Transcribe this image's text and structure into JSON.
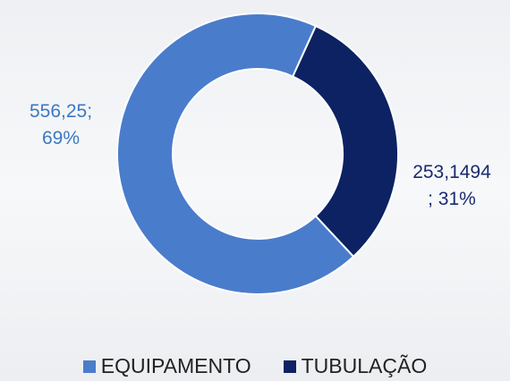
{
  "chart_data": {
    "type": "donut",
    "categories": [
      "EQUIPAMENTO",
      "TUBULAÇÃO"
    ],
    "values": [
      556.25,
      253.1494
    ],
    "value_labels": [
      "556,25;\n69%",
      "253,1494\n; 31%"
    ],
    "colors": [
      "#4a7ccc",
      "#0c2262"
    ],
    "legend": "bottom"
  }
}
